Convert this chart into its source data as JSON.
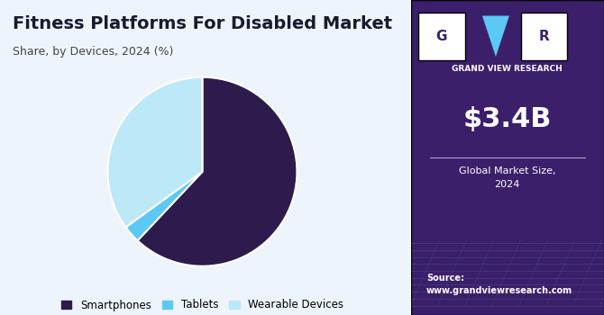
{
  "title": "Fitness Platforms For Disabled Market",
  "subtitle": "Share, by Devices, 2024 (%)",
  "slices": [
    62,
    3,
    35
  ],
  "labels": [
    "Smartphones",
    "Tablets",
    "Wearable Devices"
  ],
  "colors": [
    "#2d1b4e",
    "#5bc8f5",
    "#bde8f7"
  ],
  "legend_labels": [
    "Smartphones",
    "Tablets",
    "Wearable Devices"
  ],
  "bg_color": "#eef4fb",
  "right_panel_color": "#3b1f6b",
  "market_size": "$3.4B",
  "market_size_label": "Global Market Size,\n2024",
  "source_text": "Source:\nwww.grandviewresearch.com",
  "title_color": "#1a1a2e",
  "subtitle_color": "#444444"
}
